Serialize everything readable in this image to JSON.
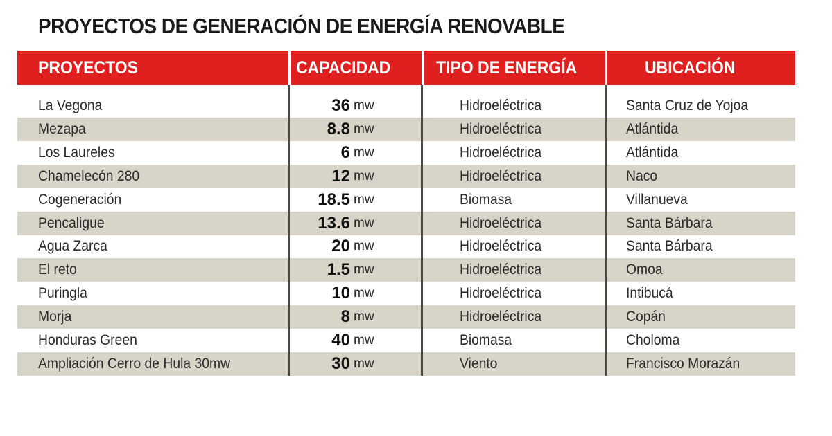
{
  "title": "PROYECTOS DE GENERACIÓN DE ENERGÍA RENOVABLE",
  "headers": [
    "PROYECTOS",
    "CAPACIDAD",
    "TIPO DE ENERGÍA",
    "UBICACIÓN"
  ],
  "colors": {
    "header": "#e0201f",
    "stripe": "#d8d5c8"
  },
  "rows": [
    {
      "project": "La Vegona",
      "capacity": "36",
      "unit": "mw",
      "type": "Hidroeléctrica",
      "location": "Santa Cruz de Yojoa"
    },
    {
      "project": "Mezapa",
      "capacity": "8.8",
      "unit": "mw",
      "type": "Hidroeléctrica",
      "location": "Atlántida"
    },
    {
      "project": "Los Laureles",
      "capacity": "6",
      "unit": "mw",
      "type": "Hidroeléctrica",
      "location": "Atlántida"
    },
    {
      "project": "Chamelecón 280",
      "capacity": "12",
      "unit": "mw",
      "type": "Hidroeléctrica",
      "location": "Naco"
    },
    {
      "project": "Cogeneración",
      "capacity": "18.5",
      "unit": "mw",
      "type": "Biomasa",
      "location": "Villanueva"
    },
    {
      "project": "Pencaligue",
      "capacity": "13.6",
      "unit": "mw",
      "type": "Hidroeléctrica",
      "location": "Santa Bárbara"
    },
    {
      "project": "Agua Zarca",
      "capacity": "20",
      "unit": "mw",
      "type": "Hidroeléctrica",
      "location": "Santa Bárbara"
    },
    {
      "project": "El reto",
      "capacity": "1.5",
      "unit": "mw",
      "type": "Hidroeléctrica",
      "location": "Omoa"
    },
    {
      "project": "Puringla",
      "capacity": "10",
      "unit": "mw",
      "type": "Hidroeléctrica",
      "location": "Intibucá"
    },
    {
      "project": "Morja",
      "capacity": "8",
      "unit": "mw",
      "type": "Hidroeléctrica",
      "location": "Copán"
    },
    {
      "project": "Honduras Green",
      "capacity": "40",
      "unit": "mw",
      "type": "Biomasa",
      "location": "Choloma"
    },
    {
      "project": "Ampliación Cerro de Hula 30mw",
      "capacity": "30",
      "unit": "mw",
      "type": "Viento",
      "location": "Francisco Morazán"
    }
  ]
}
